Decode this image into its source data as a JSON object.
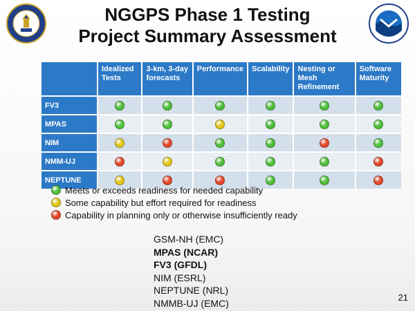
{
  "title": {
    "line1": "NGGPS Phase 1 Testing",
    "line2": "Project Summary Assessment"
  },
  "colors": {
    "header_blue": "#2c79c7",
    "green": "#4fbf3a",
    "yellow": "#e3c619",
    "red": "#e3482a"
  },
  "icons": [
    "commerce-seal-icon",
    "noaa-logo-icon"
  ],
  "table": {
    "columns": [
      "",
      "Idealized Tests",
      "3-km, 3-day forecasts",
      "Performance",
      "Scalability",
      "Nesting or Mesh Refinement",
      "Software Maturity"
    ],
    "rows": [
      {
        "label": "FV3",
        "ratings": [
          "green",
          "green",
          "green",
          "green",
          "green",
          "green"
        ]
      },
      {
        "label": "MPAS",
        "ratings": [
          "green",
          "green",
          "yellow",
          "green",
          "green",
          "green"
        ]
      },
      {
        "label": "NIM",
        "ratings": [
          "yellow",
          "red",
          "green",
          "green",
          "red",
          "green"
        ]
      },
      {
        "label": "NMM-UJ",
        "ratings": [
          "red",
          "yellow",
          "green",
          "green",
          "green",
          "red"
        ]
      },
      {
        "label": "NEPTUNE",
        "ratings": [
          "yellow",
          "red",
          "red",
          "green",
          "green",
          "red"
        ]
      }
    ]
  },
  "legend": [
    {
      "color": "green",
      "text": "Meets or exceeds readiness for needed capability"
    },
    {
      "color": "yellow",
      "text": "Some capability but effort required for readiness"
    },
    {
      "color": "red",
      "text": "Capability in planning only or otherwise insufficiently ready"
    }
  ],
  "models": [
    {
      "text": "GSM-NH (EMC)",
      "bold": false
    },
    {
      "text": "MPAS (NCAR)",
      "bold": true
    },
    {
      "text": "FV3 (GFDL)",
      "bold": true
    },
    {
      "text": "NIM (ESRL)",
      "bold": false
    },
    {
      "text": "NEPTUNE (NRL)",
      "bold": false
    },
    {
      "text": "NMMB-UJ (EMC)",
      "bold": false
    }
  ],
  "page_number": "21"
}
